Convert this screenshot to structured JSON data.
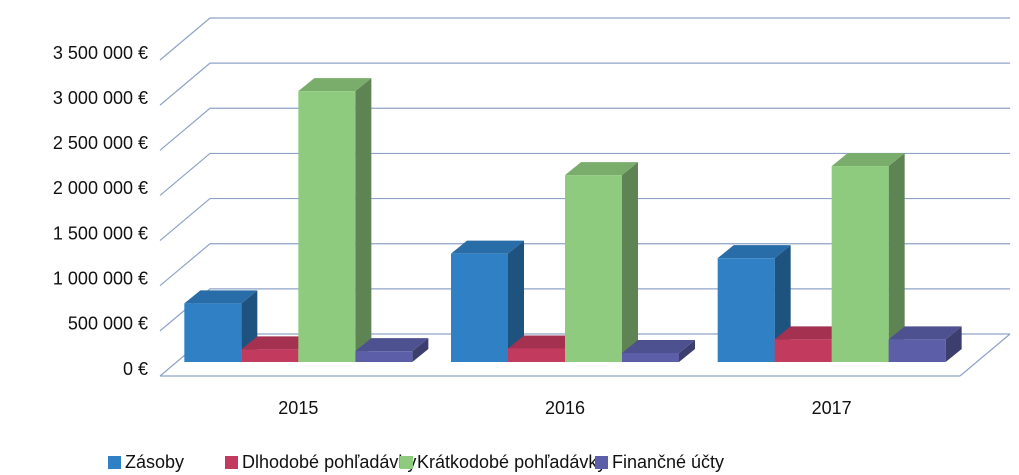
{
  "chart_data": {
    "type": "bar3d",
    "categories": [
      "2015",
      "2016",
      "2017"
    ],
    "series": [
      {
        "name": "Zásoby",
        "color": "#2f80c4",
        "values": [
          650000,
          1200000,
          1150000
        ]
      },
      {
        "name": "Dlhodobé pohľadávky",
        "color": "#c23a5e",
        "values": [
          140000,
          150000,
          250000
        ]
      },
      {
        "name": "Krátkodobé pohľadávky",
        "color": "#8fcb7e",
        "values": [
          3000000,
          2070000,
          2170000
        ]
      },
      {
        "name": "Finančné účty",
        "color": "#5c5fa8",
        "values": [
          120000,
          100000,
          250000
        ]
      }
    ],
    "ylim": [
      0,
      3500000
    ],
    "yticks": [
      {
        "value": 0,
        "label": "0 €"
      },
      {
        "value": 500000,
        "label": "500 000 €"
      },
      {
        "value": 1000000,
        "label": "1 000 000 €"
      },
      {
        "value": 1500000,
        "label": "1 500 000 €"
      },
      {
        "value": 2000000,
        "label": "2 000 000 €"
      },
      {
        "value": 2500000,
        "label": "2 500 000 €"
      },
      {
        "value": 3000000,
        "label": "3 000 000 €"
      },
      {
        "value": 3500000,
        "label": "3 500 000 €"
      }
    ],
    "grid": true,
    "legend": "bottom"
  }
}
